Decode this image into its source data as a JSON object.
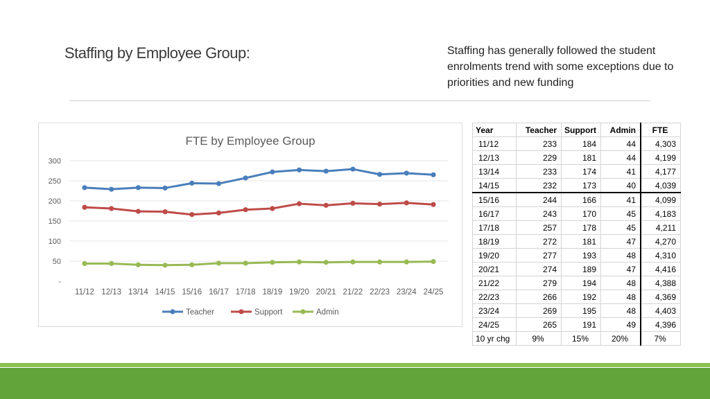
{
  "slide": {
    "title": "Staffing by Employee Group:",
    "note": "Staffing has generally followed the student enrolments trend with some exceptions due to priorities and new funding"
  },
  "colors": {
    "teacher": "#4a7ebb",
    "support": "#be4b48",
    "admin": "#98b954",
    "footer": "#62a33a"
  },
  "chart_data": {
    "type": "line",
    "title": "FTE by Employee Group",
    "categories": [
      "11/12",
      "12/13",
      "13/14",
      "14/15",
      "15/16",
      "16/17",
      "17/18",
      "18/19",
      "19/20",
      "20/21",
      "21/22",
      "22/23",
      "23/24",
      "24/25"
    ],
    "series": [
      {
        "name": "Teacher",
        "values": [
          233,
          229,
          233,
          232,
          244,
          243,
          257,
          272,
          277,
          274,
          279,
          266,
          269,
          265
        ]
      },
      {
        "name": "Support",
        "values": [
          184,
          181,
          174,
          173,
          166,
          170,
          178,
          181,
          193,
          189,
          194,
          192,
          195,
          191
        ]
      },
      {
        "name": "Admin",
        "values": [
          44,
          44,
          41,
          40,
          41,
          45,
          45,
          47,
          48,
          47,
          48,
          48,
          48,
          49
        ]
      }
    ],
    "yticks": [
      "-",
      "50",
      "100",
      "150",
      "200",
      "250",
      "300"
    ],
    "ylim": [
      0,
      300
    ],
    "legend": "bottom"
  },
  "table": {
    "headers": [
      "Year",
      "Teacher",
      "Support",
      "Admin",
      "FTE"
    ],
    "rows": [
      [
        "11/12",
        "233",
        "184",
        "44",
        "4,303"
      ],
      [
        "12/13",
        "229",
        "181",
        "44",
        "4,199"
      ],
      [
        "13/14",
        "233",
        "174",
        "41",
        "4,177"
      ],
      [
        "14/15",
        "232",
        "173",
        "40",
        "4,039"
      ],
      [
        "15/16",
        "244",
        "166",
        "41",
        "4,099"
      ],
      [
        "16/17",
        "243",
        "170",
        "45",
        "4,183"
      ],
      [
        "17/18",
        "257",
        "178",
        "45",
        "4,211"
      ],
      [
        "18/19",
        "272",
        "181",
        "47",
        "4,270"
      ],
      [
        "19/20",
        "277",
        "193",
        "48",
        "4,310"
      ],
      [
        "20/21",
        "274",
        "189",
        "47",
        "4,416"
      ],
      [
        "21/22",
        "279",
        "194",
        "48",
        "4,388"
      ],
      [
        "22/23",
        "266",
        "192",
        "48",
        "4,369"
      ],
      [
        "23/24",
        "269",
        "195",
        "48",
        "4,403"
      ],
      [
        "24/25",
        "265",
        "191",
        "49",
        "4,396"
      ]
    ],
    "footer": [
      "10 yr chg",
      "9%",
      "15%",
      "20%",
      "7%"
    ]
  }
}
